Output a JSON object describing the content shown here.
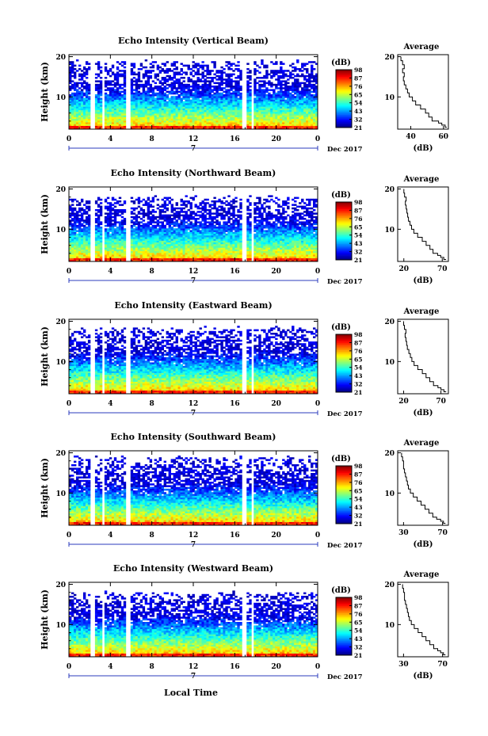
{
  "figure": {
    "xlabel": "Local Time",
    "ylabel": "Height (km)",
    "date_label": "Dec 2017",
    "day_label": "7",
    "cbar_unit": "(dB)",
    "avg_title": "Average",
    "avg_xlabel": "(dB)"
  },
  "chart_data": [
    {
      "type": "heatmap",
      "title": "Echo Intensity (Vertical Beam)",
      "xlabel": "Local Time",
      "ylabel": "Height (km)",
      "x_ticks": [
        "0",
        "4",
        "8",
        "12",
        "16",
        "20",
        "0"
      ],
      "xlim": [
        0,
        24
      ],
      "y_ticks": [
        "10",
        "20"
      ],
      "ylim": [
        2,
        20.5
      ],
      "gaps_hours": [
        [
          2.0,
          2.5
        ],
        [
          3.1,
          3.5
        ],
        [
          5.5,
          5.85
        ],
        [
          16.6,
          17.1
        ],
        [
          17.5,
          17.9
        ]
      ],
      "colorbar": {
        "label": "(dB)",
        "ticks": [
          "21",
          "32",
          "43",
          "54",
          "65",
          "76",
          "87",
          "98"
        ],
        "range": [
          21,
          98
        ]
      },
      "data_top_km": 19,
      "average": {
        "title": "Average",
        "xlabel": "(dB)",
        "x_ticks": [
          "40",
          "60"
        ],
        "xlim": [
          32,
          63
        ],
        "profile": [
          {
            "h": 2.5,
            "v": 62
          },
          {
            "h": 3,
            "v": 61
          },
          {
            "h": 3.5,
            "v": 59
          },
          {
            "h": 4,
            "v": 57
          },
          {
            "h": 5,
            "v": 53
          },
          {
            "h": 6,
            "v": 51
          },
          {
            "h": 7,
            "v": 49
          },
          {
            "h": 8,
            "v": 46
          },
          {
            "h": 9,
            "v": 43
          },
          {
            "h": 10,
            "v": 41
          },
          {
            "h": 11,
            "v": 39
          },
          {
            "h": 12,
            "v": 38
          },
          {
            "h": 13,
            "v": 37
          },
          {
            "h": 14,
            "v": 36
          },
          {
            "h": 15,
            "v": 35.5
          },
          {
            "h": 16,
            "v": 36
          },
          {
            "h": 17,
            "v": 35
          },
          {
            "h": 18,
            "v": 36
          },
          {
            "h": 19,
            "v": 35
          },
          {
            "h": 20,
            "v": 34
          }
        ]
      }
    },
    {
      "type": "heatmap",
      "title": "Echo Intensity (Northward Beam)",
      "xlabel": "Local Time",
      "ylabel": "Height (km)",
      "x_ticks": [
        "0",
        "4",
        "8",
        "12",
        "16",
        "20",
        "0"
      ],
      "xlim": [
        0,
        24
      ],
      "y_ticks": [
        "10",
        "20"
      ],
      "ylim": [
        2,
        20.5
      ],
      "gaps_hours": [
        [
          2.0,
          2.5
        ],
        [
          3.1,
          3.5
        ],
        [
          5.5,
          5.85
        ],
        [
          16.6,
          17.1
        ],
        [
          17.5,
          17.9
        ]
      ],
      "colorbar": {
        "label": "(dB)",
        "ticks": [
          "21",
          "32",
          "43",
          "54",
          "65",
          "76",
          "87",
          "98"
        ],
        "range": [
          21,
          98
        ]
      },
      "data_top_km": 18,
      "average": {
        "title": "Average",
        "xlabel": "(dB)",
        "x_ticks": [
          "20",
          "70"
        ],
        "xlim": [
          12,
          78
        ],
        "profile": [
          {
            "h": 2.5,
            "v": 75
          },
          {
            "h": 3,
            "v": 72
          },
          {
            "h": 3.5,
            "v": 68
          },
          {
            "h": 4,
            "v": 64
          },
          {
            "h": 5,
            "v": 58
          },
          {
            "h": 6,
            "v": 54
          },
          {
            "h": 7,
            "v": 49
          },
          {
            "h": 8,
            "v": 44
          },
          {
            "h": 9,
            "v": 38
          },
          {
            "h": 10,
            "v": 33
          },
          {
            "h": 11,
            "v": 30
          },
          {
            "h": 12,
            "v": 28
          },
          {
            "h": 13,
            "v": 26
          },
          {
            "h": 14,
            "v": 25
          },
          {
            "h": 15,
            "v": 24
          },
          {
            "h": 16,
            "v": 23
          },
          {
            "h": 17,
            "v": 22
          },
          {
            "h": 18,
            "v": 23
          },
          {
            "h": 19,
            "v": 21
          },
          {
            "h": 20,
            "v": 20
          }
        ]
      }
    },
    {
      "type": "heatmap",
      "title": "Echo Intensity (Eastward Beam)",
      "xlabel": "Local Time",
      "ylabel": "Height (km)",
      "x_ticks": [
        "0",
        "4",
        "8",
        "12",
        "16",
        "20",
        "0"
      ],
      "xlim": [
        0,
        24
      ],
      "y_ticks": [
        "10",
        "20"
      ],
      "ylim": [
        2,
        20.5
      ],
      "gaps_hours": [
        [
          2.0,
          2.5
        ],
        [
          3.1,
          3.5
        ],
        [
          5.5,
          5.85
        ],
        [
          16.6,
          17.1
        ],
        [
          17.5,
          17.9
        ]
      ],
      "colorbar": {
        "label": "(dB)",
        "ticks": [
          "21",
          "32",
          "43",
          "54",
          "65",
          "76",
          "87",
          "98"
        ],
        "range": [
          21,
          98
        ]
      },
      "data_top_km": 18.5,
      "average": {
        "title": "Average",
        "xlabel": "(dB)",
        "x_ticks": [
          "20",
          "70"
        ],
        "xlim": [
          12,
          80
        ],
        "profile": [
          {
            "h": 2.5,
            "v": 77
          },
          {
            "h": 3,
            "v": 74
          },
          {
            "h": 3.5,
            "v": 70
          },
          {
            "h": 4,
            "v": 66
          },
          {
            "h": 5,
            "v": 60
          },
          {
            "h": 6,
            "v": 55
          },
          {
            "h": 7,
            "v": 50
          },
          {
            "h": 8,
            "v": 45
          },
          {
            "h": 9,
            "v": 39
          },
          {
            "h": 10,
            "v": 34
          },
          {
            "h": 11,
            "v": 31
          },
          {
            "h": 12,
            "v": 29
          },
          {
            "h": 13,
            "v": 27
          },
          {
            "h": 14,
            "v": 25
          },
          {
            "h": 15,
            "v": 24
          },
          {
            "h": 16,
            "v": 23
          },
          {
            "h": 17,
            "v": 22
          },
          {
            "h": 18,
            "v": 23
          },
          {
            "h": 19,
            "v": 21
          },
          {
            "h": 20,
            "v": 20
          }
        ]
      }
    },
    {
      "type": "heatmap",
      "title": "Echo Intensity (Southward Beam)",
      "xlabel": "Local Time",
      "ylabel": "Height (km)",
      "x_ticks": [
        "0",
        "4",
        "8",
        "12",
        "16",
        "20",
        "0"
      ],
      "xlim": [
        0,
        24
      ],
      "y_ticks": [
        "10",
        "20"
      ],
      "ylim": [
        2,
        20.5
      ],
      "gaps_hours": [
        [
          2.0,
          2.5
        ],
        [
          3.1,
          3.5
        ],
        [
          5.5,
          5.85
        ],
        [
          16.6,
          17.1
        ],
        [
          17.5,
          17.9
        ]
      ],
      "colorbar": {
        "label": "(dB)",
        "ticks": [
          "21",
          "32",
          "43",
          "54",
          "65",
          "76",
          "87",
          "98"
        ],
        "range": [
          21,
          98
        ]
      },
      "data_top_km": 19,
      "average": {
        "title": "Average",
        "xlabel": "(dB)",
        "x_ticks": [
          "30",
          "70"
        ],
        "xlim": [
          24,
          76
        ],
        "profile": [
          {
            "h": 2.5,
            "v": 73
          },
          {
            "h": 3,
            "v": 71
          },
          {
            "h": 3.5,
            "v": 68
          },
          {
            "h": 4,
            "v": 64
          },
          {
            "h": 5,
            "v": 60
          },
          {
            "h": 6,
            "v": 56
          },
          {
            "h": 7,
            "v": 52
          },
          {
            "h": 8,
            "v": 48
          },
          {
            "h": 9,
            "v": 44
          },
          {
            "h": 10,
            "v": 40
          },
          {
            "h": 11,
            "v": 37
          },
          {
            "h": 12,
            "v": 35
          },
          {
            "h": 13,
            "v": 34
          },
          {
            "h": 14,
            "v": 33
          },
          {
            "h": 15,
            "v": 32
          },
          {
            "h": 16,
            "v": 31
          },
          {
            "h": 17,
            "v": 30
          },
          {
            "h": 18,
            "v": 30
          },
          {
            "h": 19,
            "v": 29
          },
          {
            "h": 20,
            "v": 28
          }
        ]
      }
    },
    {
      "type": "heatmap",
      "title": "Echo Intensity (Westward Beam)",
      "xlabel": "Local Time",
      "ylabel": "Height (km)",
      "x_ticks": [
        "0",
        "4",
        "8",
        "12",
        "16",
        "20",
        "0"
      ],
      "xlim": [
        0,
        24
      ],
      "y_ticks": [
        "10",
        "20"
      ],
      "ylim": [
        2,
        20.5
      ],
      "gaps_hours": [
        [
          2.0,
          2.5
        ],
        [
          3.1,
          3.5
        ],
        [
          5.5,
          5.85
        ],
        [
          16.6,
          17.1
        ],
        [
          17.5,
          17.9
        ]
      ],
      "colorbar": {
        "label": "(dB)",
        "ticks": [
          "21",
          "32",
          "43",
          "54",
          "65",
          "76",
          "87",
          "98"
        ],
        "range": [
          21,
          98
        ]
      },
      "data_top_km": 18,
      "average": {
        "title": "Average",
        "xlabel": "(dB)",
        "x_ticks": [
          "30",
          "70"
        ],
        "xlim": [
          24,
          76
        ],
        "profile": [
          {
            "h": 2.5,
            "v": 73
          },
          {
            "h": 3,
            "v": 71
          },
          {
            "h": 3.5,
            "v": 68
          },
          {
            "h": 4,
            "v": 65
          },
          {
            "h": 5,
            "v": 61
          },
          {
            "h": 6,
            "v": 57
          },
          {
            "h": 7,
            "v": 53
          },
          {
            "h": 8,
            "v": 49
          },
          {
            "h": 9,
            "v": 45
          },
          {
            "h": 10,
            "v": 41
          },
          {
            "h": 11,
            "v": 38
          },
          {
            "h": 12,
            "v": 36
          },
          {
            "h": 13,
            "v": 35
          },
          {
            "h": 14,
            "v": 34
          },
          {
            "h": 15,
            "v": 33
          },
          {
            "h": 16,
            "v": 32
          },
          {
            "h": 17,
            "v": 31
          },
          {
            "h": 18,
            "v": 31
          },
          {
            "h": 19,
            "v": 30
          },
          {
            "h": 20,
            "v": 29
          }
        ]
      }
    }
  ]
}
